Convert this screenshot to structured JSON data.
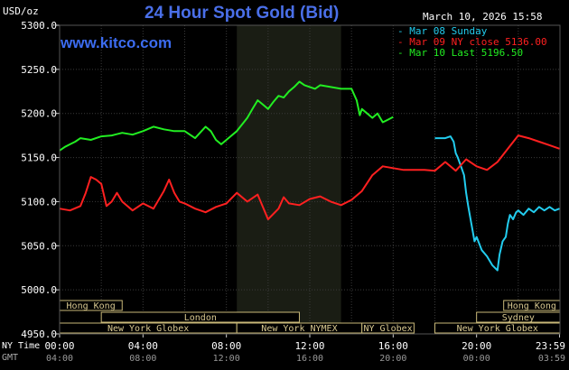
{
  "header": {
    "title": "24 Hour Spot Gold (Bid)",
    "site": "www.kitco.com",
    "timestamp": "March 10, 2026 15:58",
    "unit": "USD/oz"
  },
  "legend": [
    {
      "label": "- Mar 08 Sunday",
      "color": "#22ccee"
    },
    {
      "label": "- Mar 09 NY close 5136.00",
      "color": "#ff2020"
    },
    {
      "label": "- Mar 10 Last 5196.50",
      "color": "#22ee22"
    }
  ],
  "timezones": {
    "primary": "NY Time",
    "secondary": "GMT"
  },
  "sessions": [
    {
      "label": "Hong Kong",
      "start_hour": 0,
      "end_hour": 3,
      "row": 1
    },
    {
      "label": "London",
      "start_hour": 2,
      "end_hour": 11.5,
      "row": 2
    },
    {
      "label": "New York Globex",
      "start_hour": 0,
      "end_hour": 8.5,
      "row": 3
    },
    {
      "label": "New York NYMEX",
      "start_hour": 8.5,
      "end_hour": 14.5,
      "row": 3
    },
    {
      "label": "NY Globex",
      "start_hour": 14.5,
      "end_hour": 17,
      "row": 3
    },
    {
      "label": "Hong Kong",
      "start_hour": 21.3,
      "end_hour": 24,
      "row": 1
    },
    {
      "label": "Sydney",
      "start_hour": 20,
      "end_hour": 24,
      "row": 2
    },
    {
      "label": "New York Globex",
      "start_hour": 18,
      "end_hour": 24,
      "row": 3
    }
  ],
  "chart_data": {
    "type": "line",
    "title": "24 Hour Spot Gold (Bid)",
    "ylabel": "USD/oz",
    "ylim": [
      4950,
      5300
    ],
    "y_ticks": [
      "4950.0",
      "5000.0",
      "5050.0",
      "5100.0",
      "5150.0",
      "5200.0",
      "5250.0",
      "5300.0"
    ],
    "y_tick_values": [
      4950,
      5000,
      5050,
      5100,
      5150,
      5200,
      5250,
      5300
    ],
    "xlim": [
      0,
      24
    ],
    "x_ticks_ny": [
      "00:00",
      "04:00",
      "08:00",
      "12:00",
      "16:00",
      "20:00",
      "23:59"
    ],
    "x_ticks_gmt": [
      "04:00",
      "08:00",
      "12:00",
      "16:00",
      "20:00",
      "00:00",
      "03:59"
    ],
    "x_tick_hours": [
      0,
      4,
      8,
      12,
      16,
      20,
      23.98
    ],
    "nymex_session_hours": [
      8.5,
      13.5
    ],
    "grid": true,
    "legend_position": "top-right",
    "series": [
      {
        "name": "Mar 08 Sunday",
        "color": "#22ccee",
        "x": [
          18.0,
          18.5,
          18.75,
          18.9,
          19.0,
          19.1,
          19.25,
          19.4,
          19.5,
          19.6,
          19.75,
          19.9,
          20.0,
          20.25,
          20.5,
          20.75,
          21.0,
          21.1,
          21.25,
          21.4,
          21.5,
          21.6,
          21.75,
          21.9,
          22.0,
          22.25,
          22.5,
          22.75,
          23.0,
          23.25,
          23.5,
          23.75,
          23.98
        ],
        "y": [
          5172,
          5172,
          5174,
          5168,
          5155,
          5150,
          5140,
          5130,
          5110,
          5095,
          5075,
          5055,
          5060,
          5045,
          5038,
          5028,
          5022,
          5040,
          5055,
          5060,
          5075,
          5085,
          5080,
          5088,
          5090,
          5085,
          5092,
          5088,
          5094,
          5090,
          5094,
          5090,
          5092
        ]
      },
      {
        "name": "Mar 09 NY close 5136.00",
        "color": "#ff2020",
        "x": [
          0.0,
          0.5,
          1.0,
          1.25,
          1.5,
          1.75,
          2.0,
          2.25,
          2.5,
          2.75,
          3.0,
          3.25,
          3.5,
          4.0,
          4.5,
          5.0,
          5.25,
          5.5,
          5.75,
          6.0,
          6.5,
          7.0,
          7.5,
          8.0,
          8.5,
          9.0,
          9.5,
          10.0,
          10.5,
          10.75,
          11.0,
          11.5,
          12.0,
          12.5,
          13.0,
          13.5,
          14.0,
          14.5,
          15.0,
          15.5,
          16.0,
          16.5,
          17.0,
          17.5,
          18.0,
          18.5,
          19.0,
          19.5,
          20.0,
          20.5,
          21.0,
          21.5,
          22.0,
          22.5,
          23.0,
          23.5,
          23.98
        ],
        "y": [
          5092,
          5090,
          5095,
          5110,
          5128,
          5125,
          5120,
          5095,
          5100,
          5110,
          5100,
          5095,
          5090,
          5098,
          5092,
          5112,
          5125,
          5110,
          5100,
          5098,
          5092,
          5088,
          5094,
          5098,
          5110,
          5100,
          5108,
          5080,
          5092,
          5105,
          5098,
          5096,
          5103,
          5106,
          5100,
          5096,
          5102,
          5112,
          5130,
          5140,
          5138,
          5136,
          5136,
          5136,
          5135,
          5145,
          5135,
          5148,
          5140,
          5136,
          5145,
          5160,
          5175,
          5172,
          5168,
          5164,
          5160
        ]
      },
      {
        "name": "Mar 10 Last 5196.50",
        "color": "#22ee22",
        "x": [
          0.0,
          0.25,
          0.5,
          0.75,
          1.0,
          1.5,
          2.0,
          2.5,
          3.0,
          3.5,
          4.0,
          4.5,
          5.0,
          5.5,
          6.0,
          6.5,
          7.0,
          7.25,
          7.5,
          7.75,
          8.0,
          8.5,
          9.0,
          9.25,
          9.5,
          9.75,
          10.0,
          10.25,
          10.5,
          10.75,
          11.0,
          11.25,
          11.5,
          11.75,
          12.0,
          12.25,
          12.5,
          13.0,
          13.5,
          14.0,
          14.25,
          14.4,
          14.5,
          14.75,
          15.0,
          15.25,
          15.5,
          15.75,
          16.0
        ],
        "y": [
          5158,
          5162,
          5165,
          5168,
          5172,
          5170,
          5174,
          5175,
          5178,
          5176,
          5180,
          5185,
          5182,
          5180,
          5180,
          5172,
          5185,
          5180,
          5170,
          5165,
          5170,
          5180,
          5195,
          5205,
          5215,
          5210,
          5205,
          5213,
          5220,
          5218,
          5225,
          5230,
          5236,
          5232,
          5230,
          5228,
          5232,
          5230,
          5228,
          5228,
          5215,
          5198,
          5205,
          5200,
          5195,
          5200,
          5190,
          5193,
          5196
        ]
      }
    ]
  }
}
